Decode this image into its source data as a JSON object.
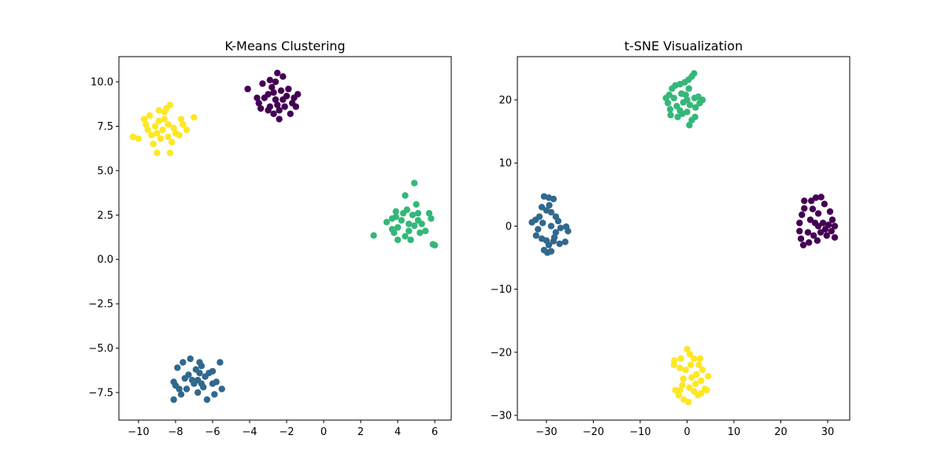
{
  "chart_data": [
    {
      "type": "scatter",
      "title": "K-Means Clustering",
      "xlabel": "",
      "ylabel": "",
      "xlim": [
        -11.06,
        6.89
      ],
      "ylim": [
        -9.05,
        11.42
      ],
      "grid": false,
      "xticks": [
        -10,
        -8,
        -6,
        -4,
        -2,
        0,
        2,
        4,
        6
      ],
      "xtick_labels": [
        "−10",
        "−8",
        "−6",
        "−4",
        "−2",
        "0",
        "2",
        "4",
        "6"
      ],
      "yticks": [
        -7.5,
        -5.0,
        -2.5,
        0.0,
        2.5,
        5.0,
        7.5,
        10.0
      ],
      "ytick_labels": [
        "−7.5",
        "−5.0",
        "−2.5",
        "0.0",
        "2.5",
        "5.0",
        "7.5",
        "10.0"
      ],
      "series": [
        {
          "color": "#440154",
          "points": [
            [
              -2.6,
              9.0
            ],
            [
              -2.3,
              9.5
            ],
            [
              -2.9,
              8.6
            ],
            [
              -2.0,
              9.2
            ],
            [
              -3.2,
              9.1
            ],
            [
              -2.5,
              10.5
            ],
            [
              -2.2,
              10.3
            ],
            [
              -4.1,
              9.6
            ],
            [
              -3.5,
              8.8
            ],
            [
              -3.0,
              8.4
            ],
            [
              -2.7,
              8.2
            ],
            [
              -2.4,
              7.9
            ],
            [
              -1.8,
              8.2
            ],
            [
              -1.6,
              9.1
            ],
            [
              -1.4,
              9.3
            ],
            [
              -1.7,
              8.8
            ],
            [
              -2.8,
              9.7
            ],
            [
              -3.3,
              9.9
            ],
            [
              -2.6,
              10.0
            ],
            [
              -3.6,
              9.1
            ],
            [
              -2.1,
              8.6
            ],
            [
              -2.5,
              8.7
            ],
            [
              -3.0,
              9.3
            ],
            [
              -2.2,
              9.0
            ],
            [
              -1.9,
              9.6
            ],
            [
              -3.4,
              8.5
            ],
            [
              -2.7,
              9.4
            ],
            [
              -2.4,
              8.4
            ],
            [
              -1.5,
              8.6
            ],
            [
              -2.9,
              10.1
            ]
          ]
        },
        {
          "color": "#31688e",
          "points": [
            [
              -6.8,
              -6.8
            ],
            [
              -7.2,
              -5.6
            ],
            [
              -7.6,
              -5.8
            ],
            [
              -6.7,
              -5.8
            ],
            [
              -6.6,
              -6.0
            ],
            [
              -5.6,
              -5.8
            ],
            [
              -6.0,
              -6.3
            ],
            [
              -7.9,
              -6.1
            ],
            [
              -8.1,
              -6.9
            ],
            [
              -8.0,
              -7.1
            ],
            [
              -7.8,
              -7.3
            ],
            [
              -7.7,
              -7.6
            ],
            [
              -8.1,
              -7.9
            ],
            [
              -6.8,
              -7.5
            ],
            [
              -6.3,
              -7.9
            ],
            [
              -5.9,
              -7.6
            ],
            [
              -5.5,
              -7.3
            ],
            [
              -6.5,
              -7.2
            ],
            [
              -7.0,
              -7.0
            ],
            [
              -7.3,
              -6.5
            ],
            [
              -6.4,
              -6.6
            ],
            [
              -6.0,
              -7.0
            ],
            [
              -6.9,
              -6.2
            ],
            [
              -7.4,
              -7.3
            ],
            [
              -6.6,
              -7.0
            ],
            [
              -7.1,
              -6.8
            ],
            [
              -5.8,
              -6.9
            ],
            [
              -6.2,
              -6.4
            ],
            [
              -7.5,
              -6.7
            ],
            [
              -6.7,
              -6.4
            ]
          ]
        },
        {
          "color": "#35b779",
          "points": [
            [
              4.6,
              2.0
            ],
            [
              4.9,
              4.3
            ],
            [
              4.4,
              3.6
            ],
            [
              5.0,
              3.1
            ],
            [
              5.7,
              2.6
            ],
            [
              5.8,
              2.3
            ],
            [
              6.0,
              0.8
            ],
            [
              5.9,
              0.85
            ],
            [
              5.5,
              1.6
            ],
            [
              5.2,
              1.5
            ],
            [
              4.4,
              1.3
            ],
            [
              3.8,
              1.5
            ],
            [
              4.0,
              1.1
            ],
            [
              2.7,
              1.35
            ],
            [
              3.4,
              2.1
            ],
            [
              3.9,
              2.4
            ],
            [
              4.3,
              2.6
            ],
            [
              4.8,
              2.5
            ],
            [
              5.1,
              2.2
            ],
            [
              4.0,
              1.8
            ],
            [
              3.7,
              1.7
            ],
            [
              4.6,
              1.6
            ],
            [
              5.3,
              2.0
            ],
            [
              4.2,
              2.2
            ],
            [
              4.9,
              1.9
            ],
            [
              3.9,
              2.7
            ],
            [
              5.1,
              2.6
            ],
            [
              4.5,
              2.8
            ],
            [
              3.7,
              2.3
            ],
            [
              4.7,
              1.1
            ]
          ]
        },
        {
          "color": "#fde725",
          "points": [
            [
              -8.7,
              7.3
            ],
            [
              -8.4,
              7.6
            ],
            [
              -9.0,
              7.1
            ],
            [
              -8.5,
              8.5
            ],
            [
              -8.3,
              8.7
            ],
            [
              -8.6,
              8.3
            ],
            [
              -9.4,
              8.1
            ],
            [
              -9.6,
              7.6
            ],
            [
              -10.3,
              6.9
            ],
            [
              -10.0,
              6.8
            ],
            [
              -9.2,
              6.5
            ],
            [
              -9.0,
              6.0
            ],
            [
              -8.3,
              6.0
            ],
            [
              -8.2,
              6.6
            ],
            [
              -7.8,
              7.0
            ],
            [
              -7.4,
              7.3
            ],
            [
              -7.7,
              7.9
            ],
            [
              -7.0,
              8.0
            ],
            [
              -8.9,
              7.8
            ],
            [
              -9.3,
              7.0
            ],
            [
              -8.1,
              7.4
            ],
            [
              -8.8,
              6.8
            ],
            [
              -9.5,
              7.3
            ],
            [
              -8.0,
              7.1
            ],
            [
              -8.6,
              7.9
            ],
            [
              -9.1,
              7.5
            ],
            [
              -7.6,
              7.6
            ],
            [
              -9.7,
              7.9
            ],
            [
              -8.4,
              6.9
            ],
            [
              -8.9,
              8.4
            ]
          ]
        }
      ]
    },
    {
      "type": "scatter",
      "title": "t-SNE Visualization",
      "xlabel": "",
      "ylabel": "",
      "xlim": [
        -36.2,
        34.7
      ],
      "ylim": [
        -30.75,
        26.86
      ],
      "grid": false,
      "xticks": [
        -30,
        -20,
        -10,
        0,
        10,
        20,
        30
      ],
      "xtick_labels": [
        "−30",
        "−20",
        "−10",
        "0",
        "10",
        "20",
        "30"
      ],
      "yticks": [
        -30,
        -20,
        -10,
        0,
        10,
        20
      ],
      "ytick_labels": [
        "−30",
        "−20",
        "−10",
        "0",
        "10",
        "20"
      ],
      "series": [
        {
          "color": "#440154",
          "points": [
            [
              28,
              0
            ],
            [
              25,
              4
            ],
            [
              26.5,
              4.0
            ],
            [
              27.5,
              4.5
            ],
            [
              28.6,
              4.6
            ],
            [
              29.3,
              3.5
            ],
            [
              30.5,
              2.3
            ],
            [
              31,
              1.0
            ],
            [
              31.5,
              0
            ],
            [
              31.5,
              -1.8
            ],
            [
              29.8,
              -1.5
            ],
            [
              28.5,
              -1.0
            ],
            [
              27.0,
              -1.5
            ],
            [
              26.0,
              -2.6
            ],
            [
              24.8,
              -3.0
            ],
            [
              24.3,
              -2.0
            ],
            [
              24.0,
              -0.8
            ],
            [
              24.0,
              0.5
            ],
            [
              24.5,
              1.8
            ],
            [
              25.0,
              2.8
            ],
            [
              26.3,
              1.0
            ],
            [
              27.3,
              0.5
            ],
            [
              29.0,
              0.5
            ],
            [
              30.2,
              0.2
            ],
            [
              28.0,
              2.0
            ],
            [
              25.8,
              -1.0
            ],
            [
              27.8,
              -2.3
            ],
            [
              29.5,
              -0.5
            ],
            [
              26.8,
              2.7
            ],
            [
              30.8,
              -0.8
            ]
          ]
        },
        {
          "color": "#31688e",
          "points": [
            [
              -29,
              0
            ],
            [
              -30.5,
              4.7
            ],
            [
              -29.5,
              4.5
            ],
            [
              -28.5,
              4.3
            ],
            [
              -31,
              3.0
            ],
            [
              -30,
              2.5
            ],
            [
              -29,
              2.2
            ],
            [
              -28,
              1.5
            ],
            [
              -32.3,
              1.0
            ],
            [
              -33.1,
              0.6
            ],
            [
              -31.8,
              -0.5
            ],
            [
              -32.2,
              -1.5
            ],
            [
              -31.0,
              -2.0
            ],
            [
              -30.0,
              -2.3
            ],
            [
              -29.5,
              -3.0
            ],
            [
              -28.5,
              -2.4
            ],
            [
              -27.2,
              -2.8
            ],
            [
              -26.0,
              -2.5
            ],
            [
              -25.4,
              -0.8
            ],
            [
              -25.8,
              -0.1
            ],
            [
              -27.0,
              -0.3
            ],
            [
              -28.0,
              -1.0
            ],
            [
              -30.5,
              -3.8
            ],
            [
              -29.8,
              -4.2
            ],
            [
              -29.0,
              -4.0
            ],
            [
              -30.8,
              0.5
            ],
            [
              -27.5,
              0.8
            ],
            [
              -28.3,
              -1.8
            ],
            [
              -31.5,
              1.5
            ],
            [
              -29.4,
              3.3
            ]
          ]
        },
        {
          "color": "#35b779",
          "points": [
            [
              0,
              20
            ],
            [
              1,
              23.7
            ],
            [
              1.5,
              24.2
            ],
            [
              0.3,
              23.2
            ],
            [
              -0.5,
              22.8
            ],
            [
              -1.5,
              22.5
            ],
            [
              -2.5,
              22.3
            ],
            [
              -3.2,
              21.8
            ],
            [
              -3.8,
              20.8
            ],
            [
              -4.5,
              20.3
            ],
            [
              -4.1,
              19.5
            ],
            [
              -3.6,
              18.5
            ],
            [
              -3.5,
              17.6
            ],
            [
              -2.0,
              17.3
            ],
            [
              -1.0,
              17.8
            ],
            [
              0.5,
              16.0
            ],
            [
              1.0,
              16.8
            ],
            [
              1.7,
              17.3
            ],
            [
              2.7,
              19.5
            ],
            [
              3.3,
              20.0
            ],
            [
              2.4,
              20.5
            ],
            [
              1.6,
              20.3
            ],
            [
              0.6,
              19.2
            ],
            [
              -0.8,
              19.6
            ],
            [
              -2.2,
              19.0
            ],
            [
              -1.5,
              18.3
            ],
            [
              0.0,
              18.1
            ],
            [
              1.8,
              18.8
            ],
            [
              -2.8,
              20.3
            ],
            [
              -0.3,
              20.8
            ],
            [
              -1.2,
              21.0
            ],
            [
              0.4,
              21.8
            ]
          ]
        },
        {
          "color": "#fde725",
          "points": [
            [
              1,
              -24
            ],
            [
              0,
              -19.5
            ],
            [
              0.6,
              -20.3
            ],
            [
              1.5,
              -21.0
            ],
            [
              2.5,
              -22.0
            ],
            [
              3.3,
              -22.8
            ],
            [
              4.5,
              -23.8
            ],
            [
              3.0,
              -24.5
            ],
            [
              2.0,
              -23.5
            ],
            [
              -1.3,
              -21.0
            ],
            [
              -2.7,
              -21.3
            ],
            [
              -2.8,
              -22.0
            ],
            [
              -1.5,
              -22.5
            ],
            [
              -0.3,
              -22.8
            ],
            [
              0.8,
              -22.0
            ],
            [
              -0.8,
              -24.2
            ],
            [
              -1.0,
              -25.2
            ],
            [
              -1.5,
              -26.0
            ],
            [
              -2.5,
              -26.0
            ],
            [
              -1.8,
              -26.8
            ],
            [
              -0.7,
              -27.5
            ],
            [
              0.3,
              -27.9
            ],
            [
              1.5,
              -26.2
            ],
            [
              2.3,
              -26.8
            ],
            [
              3.0,
              -26.5
            ],
            [
              3.8,
              -25.8
            ],
            [
              4.2,
              -26.0
            ],
            [
              1.8,
              -25.0
            ],
            [
              0.5,
              -25.6
            ],
            [
              2.8,
              -21.0
            ]
          ]
        }
      ]
    }
  ]
}
